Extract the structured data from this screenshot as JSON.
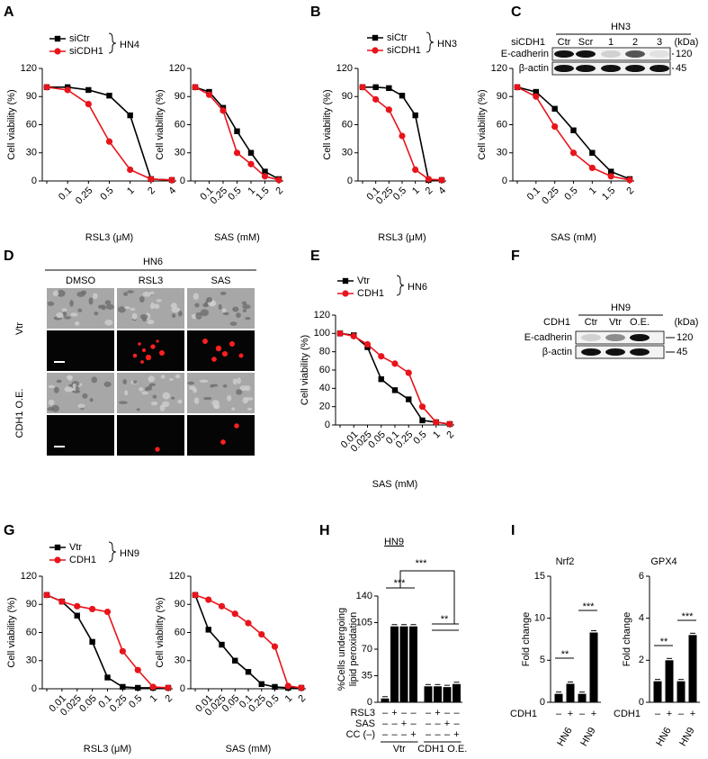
{
  "panel_labels": [
    "A",
    "B",
    "C",
    "D",
    "E",
    "F",
    "G",
    "H",
    "I"
  ],
  "chart_data": [
    {
      "type": "line",
      "xlabel": "RSL3 (μM)",
      "ylabel": "Cell viability (%)",
      "group": "HN4",
      "categories": [
        null,
        "0.1",
        "0.25",
        "0.5",
        "1",
        "2",
        "4"
      ],
      "ylim": [
        0,
        120
      ],
      "yticks": [
        0,
        30,
        60,
        90,
        120
      ],
      "series": [
        {
          "name": "siCtr",
          "color": "#000000",
          "marker": "square",
          "values": [
            100,
            100,
            97,
            91,
            70,
            2,
            1
          ]
        },
        {
          "name": "siCDH1",
          "color": "#e8141b",
          "marker": "circle",
          "values": [
            100,
            97,
            82,
            42,
            12,
            2,
            1
          ]
        }
      ]
    },
    {
      "type": "line",
      "xlabel": "SAS (mM)",
      "ylabel": "Cell viability (%)",
      "categories": [
        null,
        "0.1",
        "0.25",
        "0.5",
        "1",
        "1.5",
        "2"
      ],
      "ylim": [
        0,
        120
      ],
      "yticks": [
        0,
        30,
        60,
        90,
        120
      ],
      "series": [
        {
          "color": "#000000",
          "marker": "square",
          "values": [
            100,
            95,
            78,
            53,
            30,
            10,
            2
          ]
        },
        {
          "color": "#e8141b",
          "marker": "circle",
          "values": [
            100,
            92,
            75,
            30,
            18,
            5,
            1
          ]
        }
      ]
    },
    {
      "type": "line",
      "xlabel": "RSL3 (μM)",
      "ylabel": "Cell viability (%)",
      "group": "HN3",
      "categories": [
        null,
        "0.1",
        "0.25",
        "0.5",
        "1",
        "2",
        "4"
      ],
      "ylim": [
        0,
        120
      ],
      "yticks": [
        0,
        30,
        60,
        90,
        120
      ],
      "series": [
        {
          "name": "siCtr",
          "color": "#000000",
          "marker": "square",
          "values": [
            100,
            100,
            99,
            91,
            70,
            1,
            1
          ]
        },
        {
          "name": "siCDH1",
          "color": "#e8141b",
          "marker": "circle",
          "values": [
            100,
            87,
            76,
            48,
            12,
            2,
            1
          ]
        }
      ]
    },
    {
      "type": "line",
      "xlabel": "SAS (mM)",
      "ylabel": "Cell viability (%)",
      "categories": [
        null,
        "0.1",
        "0.25",
        "0.5",
        "1",
        "1.5",
        "2"
      ],
      "ylim": [
        0,
        120
      ],
      "yticks": [
        0,
        30,
        60,
        90,
        120
      ],
      "series": [
        {
          "color": "#000000",
          "marker": "square",
          "values": [
            100,
            95,
            77,
            54,
            30,
            10,
            2
          ]
        },
        {
          "color": "#e8141b",
          "marker": "circle",
          "values": [
            100,
            90,
            58,
            30,
            14,
            5,
            1
          ]
        }
      ]
    },
    {
      "type": "line",
      "xlabel": "SAS (mM)",
      "ylabel": "Cell viability (%)",
      "group": "HN6",
      "categories": [
        null,
        "0.01",
        "0.025",
        "0.05",
        "0.1",
        "0.25",
        "0.5",
        "1",
        "2"
      ],
      "ylim": [
        0,
        120
      ],
      "yticks": [
        0,
        20,
        40,
        60,
        80,
        100,
        120
      ],
      "series": [
        {
          "name": "Vtr",
          "color": "#000000",
          "marker": "square",
          "values": [
            100,
            98,
            85,
            50,
            38,
            28,
            5,
            3,
            1
          ]
        },
        {
          "name": "CDH1",
          "color": "#e8141b",
          "marker": "circle",
          "values": [
            100,
            97,
            88,
            75,
            67,
            57,
            20,
            3,
            1
          ]
        }
      ]
    },
    {
      "type": "line",
      "xlabel": "RSL3 (μM)",
      "ylabel": "Cell viability (%)",
      "group": "HN9",
      "categories": [
        null,
        "0.01",
        "0.025",
        "0.05",
        "0.1",
        "0.25",
        "0.5",
        "1",
        "2"
      ],
      "ylim": [
        0,
        120
      ],
      "yticks": [
        0,
        30,
        60,
        90,
        120
      ],
      "series": [
        {
          "name": "Vtr",
          "color": "#000000",
          "marker": "square",
          "values": [
            100,
            93,
            78,
            50,
            12,
            2,
            1,
            1,
            1
          ]
        },
        {
          "name": "CDH1",
          "color": "#e8141b",
          "marker": "circle",
          "values": [
            100,
            93,
            88,
            85,
            82,
            40,
            20,
            2,
            1
          ]
        }
      ]
    },
    {
      "type": "line",
      "xlabel": "SAS (mM)",
      "ylabel": "Cell viability (%)",
      "categories": [
        null,
        "0.01",
        "0.025",
        "0.05",
        "0.1",
        "0.25",
        "0.5",
        "1",
        "2"
      ],
      "ylim": [
        0,
        120
      ],
      "yticks": [
        0,
        30,
        60,
        90,
        120
      ],
      "series": [
        {
          "color": "#000000",
          "marker": "square",
          "values": [
            100,
            63,
            47,
            30,
            18,
            5,
            2,
            1,
            1
          ]
        },
        {
          "color": "#e8141b",
          "marker": "circle",
          "values": [
            100,
            95,
            88,
            80,
            70,
            58,
            45,
            3,
            1
          ]
        }
      ]
    },
    {
      "type": "bar",
      "title": "HN9",
      "ylabel": [
        "%Cells undergoing",
        "lipid peroxidation"
      ],
      "color": "#000000",
      "values": [
        5,
        100,
        100,
        100,
        21,
        21,
        20,
        24
      ],
      "ylim": [
        0,
        140
      ],
      "yticks": [
        0,
        35,
        70,
        105,
        140
      ],
      "signs": [
        {
          "label": "RSL3",
          "marks": [
            "–",
            "+",
            "–",
            "–",
            "–",
            "+",
            "–",
            "–"
          ]
        },
        {
          "label": "SAS",
          "marks": [
            "–",
            "–",
            "+",
            "–",
            "–",
            "–",
            "+",
            "–"
          ]
        },
        {
          "label": "CC (–)",
          "marks": [
            "–",
            "–",
            "–",
            "+",
            "–",
            "–",
            "–",
            "+"
          ]
        }
      ],
      "groups": [
        "Vtr",
        "CDH1 O.E."
      ],
      "annotations": [
        "***",
        "***",
        "**"
      ]
    },
    {
      "type": "bar",
      "title": "Nrf2",
      "ylabel": [
        "Fold change"
      ],
      "color": "#000000",
      "values": [
        1,
        2.2,
        1,
        8.3
      ],
      "ylim": [
        0,
        15
      ],
      "yticks": [
        0,
        5,
        10,
        15
      ],
      "signs": [
        {
          "label": "CDH1",
          "marks": [
            "–",
            "+",
            "–",
            "+"
          ]
        }
      ],
      "groups": [
        "HN6",
        "HN9"
      ],
      "annotations": [
        "**",
        "***"
      ]
    },
    {
      "type": "bar",
      "title": "GPX4",
      "ylabel": [
        "Fold change"
      ],
      "color": "#000000",
      "values": [
        1,
        2,
        1,
        3.2
      ],
      "ylim": [
        0,
        6
      ],
      "yticks": [
        0,
        2,
        4,
        6
      ],
      "signs": [
        {
          "label": "CDH1",
          "marks": [
            "–",
            "+",
            "–",
            "+"
          ]
        }
      ],
      "groups": [
        "HN6",
        "HN9"
      ],
      "annotations": [
        "**",
        "***"
      ]
    }
  ],
  "blots": [
    {
      "title": "HN3",
      "lane_label": "siCDH1",
      "lanes": [
        "Ctr",
        "Scr",
        "1",
        "2",
        "3"
      ],
      "unit": "(kDa)",
      "bands": [
        {
          "label": "E-cadherin",
          "size": 120
        },
        {
          "label": "β-actin",
          "size": 45
        }
      ]
    },
    {
      "title": "HN9",
      "lane_label": "CDH1",
      "lanes": [
        "Ctr",
        "Vtr",
        "O.E."
      ],
      "unit": "(kDa)",
      "bands": [
        {
          "label": "E-cadherin",
          "size": 120
        },
        {
          "label": "β-actin",
          "size": 45
        }
      ]
    }
  ],
  "microscopy": {
    "title": "HN6",
    "columns": [
      "DMSO",
      "RSL3",
      "SAS"
    ],
    "rows": [
      "Vtr",
      "CDH1 O.E."
    ]
  }
}
